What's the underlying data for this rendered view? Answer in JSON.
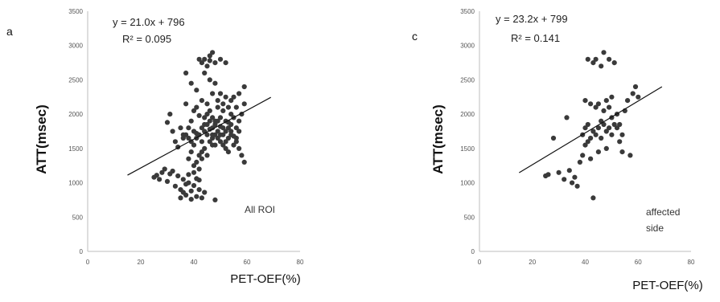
{
  "chart_data": [
    {
      "type": "scatter",
      "panel_label": "a",
      "xlabel": "PET-OEF(%)",
      "ylabel": "ATT(msec)",
      "xlim": [
        0,
        80
      ],
      "ylim": [
        0,
        3500
      ],
      "x_ticks": [
        0,
        20,
        40,
        60,
        80
      ],
      "y_ticks": [
        0,
        500,
        1000,
        1500,
        2000,
        2500,
        3000,
        3500
      ],
      "equation": "y = 21.0x + 796",
      "r_squared": "R² = 0.095",
      "annotation": [
        "All ROI"
      ],
      "trendline": {
        "slope": 21.0,
        "intercept": 796,
        "x_range": [
          15,
          69
        ]
      },
      "points": [
        [
          25,
          1080
        ],
        [
          26,
          1110
        ],
        [
          27,
          1050
        ],
        [
          28,
          1150
        ],
        [
          29,
          1200
        ],
        [
          30,
          1020
        ],
        [
          31,
          1130
        ],
        [
          32,
          1170
        ],
        [
          33,
          950
        ],
        [
          34,
          1100
        ],
        [
          35,
          900
        ],
        [
          36,
          860
        ],
        [
          37,
          820
        ],
        [
          38,
          1000
        ],
        [
          39,
          880
        ],
        [
          40,
          960
        ],
        [
          41,
          800
        ],
        [
          42,
          1040
        ],
        [
          43,
          780
        ],
        [
          44,
          860
        ],
        [
          36,
          1050
        ],
        [
          38,
          1120
        ],
        [
          40,
          1150
        ],
        [
          42,
          900
        ],
        [
          35,
          780
        ],
        [
          39,
          760
        ],
        [
          41,
          1060
        ],
        [
          37,
          980
        ],
        [
          30,
          1880
        ],
        [
          31,
          2000
        ],
        [
          32,
          1750
        ],
        [
          33,
          1600
        ],
        [
          34,
          1520
        ],
        [
          35,
          1800
        ],
        [
          36,
          1700
        ],
        [
          37,
          2150
        ],
        [
          38,
          1650
        ],
        [
          39,
          1900
        ],
        [
          40,
          1550
        ],
        [
          41,
          1720
        ],
        [
          42,
          1980
        ],
        [
          43,
          1600
        ],
        [
          44,
          1850
        ],
        [
          45,
          1700
        ],
        [
          46,
          1780
        ],
        [
          47,
          1650
        ],
        [
          48,
          1900
        ],
        [
          49,
          1750
        ],
        [
          50,
          1820
        ],
        [
          51,
          1700
        ],
        [
          52,
          1600
        ],
        [
          53,
          1880
        ],
        [
          54,
          1750
        ],
        [
          55,
          1680
        ],
        [
          56,
          1800
        ],
        [
          57,
          1900
        ],
        [
          58,
          2000
        ],
        [
          59,
          2150
        ],
        [
          40,
          2050
        ],
        [
          41,
          2100
        ],
        [
          42,
          1400
        ],
        [
          43,
          1450
        ],
        [
          44,
          1950
        ],
        [
          45,
          2000
        ],
        [
          46,
          2050
        ],
        [
          47,
          1950
        ],
        [
          48,
          1550
        ],
        [
          49,
          2100
        ],
        [
          50,
          1950
        ],
        [
          51,
          2050
        ],
        [
          52,
          1900
        ],
        [
          53,
          1800
        ],
        [
          54,
          2000
        ],
        [
          55,
          1950
        ],
        [
          56,
          1600
        ],
        [
          57,
          1500
        ],
        [
          58,
          1400
        ],
        [
          59,
          1300
        ],
        [
          38,
          1350
        ],
        [
          39,
          1450
        ],
        [
          40,
          1250
        ],
        [
          41,
          1300
        ],
        [
          42,
          1200
        ],
        [
          43,
          1350
        ],
        [
          44,
          1500
        ],
        [
          45,
          1400
        ],
        [
          46,
          1600
        ],
        [
          47,
          1550
        ],
        [
          48,
          1700
        ],
        [
          49,
          1650
        ],
        [
          50,
          1600
        ],
        [
          51,
          1550
        ],
        [
          52,
          1500
        ],
        [
          53,
          1450
        ],
        [
          54,
          1700
        ],
        [
          55,
          1550
        ],
        [
          56,
          1650
        ],
        [
          57,
          1750
        ],
        [
          42,
          2800
        ],
        [
          43,
          2750
        ],
        [
          44,
          2800
        ],
        [
          45,
          2700
        ],
        [
          46,
          2850
        ],
        [
          47,
          2900
        ],
        [
          48,
          2750
        ],
        [
          50,
          2800
        ],
        [
          52,
          2750
        ],
        [
          46,
          2780
        ],
        [
          44,
          2600
        ],
        [
          46,
          2500
        ],
        [
          48,
          2450
        ],
        [
          50,
          2300
        ],
        [
          52,
          2250
        ],
        [
          54,
          2200
        ],
        [
          37,
          2600
        ],
        [
          39,
          2450
        ],
        [
          41,
          2350
        ],
        [
          43,
          2200
        ],
        [
          45,
          2150
        ],
        [
          47,
          2300
        ],
        [
          49,
          2200
        ],
        [
          51,
          2150
        ],
        [
          53,
          2100
        ],
        [
          55,
          2250
        ],
        [
          57,
          2300
        ],
        [
          59,
          2400
        ],
        [
          56,
          2100
        ],
        [
          54,
          1850
        ],
        [
          45,
          1850
        ],
        [
          46,
          1900
        ],
        [
          47,
          1800
        ],
        [
          48,
          1850
        ],
        [
          49,
          1900
        ],
        [
          50,
          1700
        ],
        [
          51,
          1800
        ],
        [
          52,
          1750
        ],
        [
          53,
          1650
        ],
        [
          47,
          1700
        ],
        [
          44,
          1750
        ],
        [
          43,
          1800
        ],
        [
          42,
          1700
        ],
        [
          41,
          1650
        ],
        [
          40,
          1750
        ],
        [
          39,
          1600
        ],
        [
          38,
          1800
        ],
        [
          37,
          1700
        ],
        [
          36,
          1650
        ],
        [
          48,
          750
        ]
      ]
    },
    {
      "type": "scatter",
      "panel_label": "c",
      "xlabel": "PET-OEF(%)",
      "ylabel": "ATT(msec)",
      "xlim": [
        0,
        80
      ],
      "ylim": [
        0,
        3500
      ],
      "x_ticks": [
        0,
        20,
        40,
        60,
        80
      ],
      "y_ticks": [
        0,
        500,
        1000,
        1500,
        2000,
        2500,
        3000,
        3500
      ],
      "equation": "y = 23.2x + 799",
      "r_squared": "R² = 0.141",
      "annotation": [
        "affected",
        "side"
      ],
      "trendline": {
        "slope": 23.2,
        "intercept": 799,
        "x_range": [
          15,
          69
        ]
      },
      "points": [
        [
          25,
          1100
        ],
        [
          26,
          1120
        ],
        [
          28,
          1650
        ],
        [
          30,
          1150
        ],
        [
          32,
          1050
        ],
        [
          33,
          1950
        ],
        [
          34,
          1180
        ],
        [
          35,
          1000
        ],
        [
          36,
          1080
        ],
        [
          37,
          950
        ],
        [
          38,
          1300
        ],
        [
          39,
          1700
        ],
        [
          40,
          1800
        ],
        [
          40,
          1550
        ],
        [
          41,
          1600
        ],
        [
          41,
          1850
        ],
        [
          42,
          1650
        ],
        [
          42,
          2150
        ],
        [
          43,
          780
        ],
        [
          43,
          1750
        ],
        [
          43,
          2750
        ],
        [
          44,
          1700
        ],
        [
          44,
          2100
        ],
        [
          44,
          2800
        ],
        [
          45,
          1800
        ],
        [
          45,
          1450
        ],
        [
          46,
          1900
        ],
        [
          46,
          1650
        ],
        [
          46,
          2700
        ],
        [
          47,
          1850
        ],
        [
          47,
          2050
        ],
        [
          47,
          2900
        ],
        [
          48,
          1750
        ],
        [
          48,
          1500
        ],
        [
          48,
          2200
        ],
        [
          49,
          1800
        ],
        [
          49,
          2100
        ],
        [
          49,
          2800
        ],
        [
          50,
          1950
        ],
        [
          50,
          1700
        ],
        [
          50,
          2250
        ],
        [
          51,
          1850
        ],
        [
          51,
          2750
        ],
        [
          52,
          1800
        ],
        [
          52,
          2000
        ],
        [
          53,
          1600
        ],
        [
          53,
          1850
        ],
        [
          54,
          1700
        ],
        [
          54,
          1450
        ],
        [
          55,
          2050
        ],
        [
          56,
          2200
        ],
        [
          57,
          1400
        ],
        [
          58,
          2300
        ],
        [
          59,
          2400
        ],
        [
          60,
          2250
        ],
        [
          41,
          2800
        ],
        [
          40,
          2200
        ],
        [
          39,
          1400
        ],
        [
          42,
          1350
        ],
        [
          45,
          2150
        ]
      ]
    }
  ]
}
